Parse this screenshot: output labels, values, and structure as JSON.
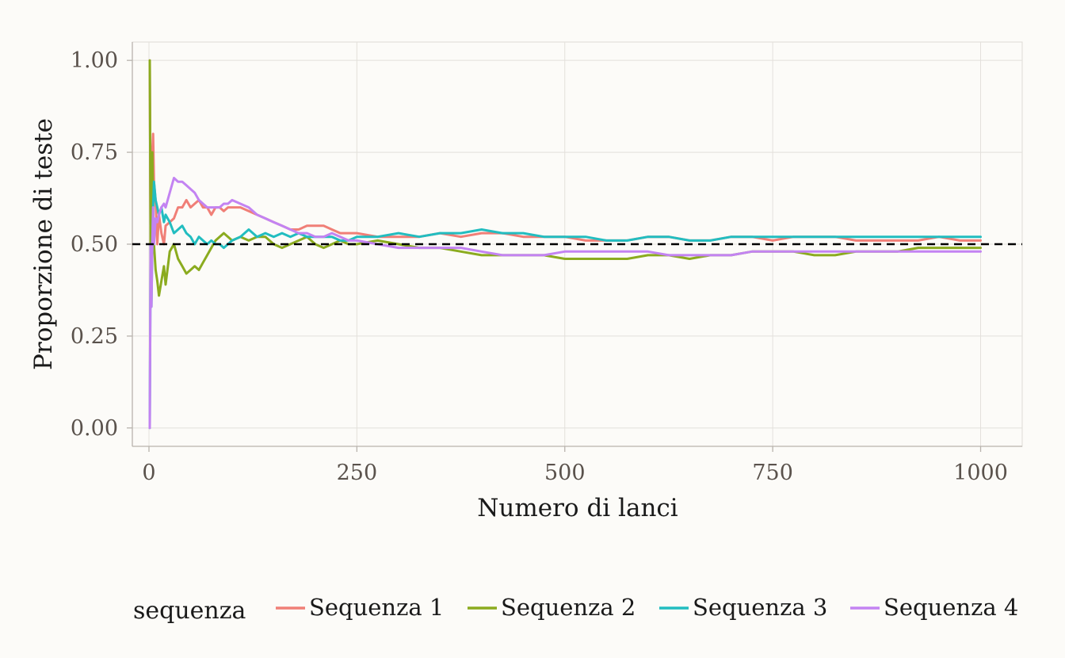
{
  "chart_data": {
    "type": "line",
    "xlabel": "Numero di lanci",
    "ylabel": "Proporzione di teste",
    "xlim": [
      -20,
      1050
    ],
    "ylim": [
      -0.05,
      1.05
    ],
    "x_ticks": [
      0,
      250,
      500,
      750,
      1000
    ],
    "x_tick_labels": [
      "0",
      "250",
      "500",
      "750",
      "1000"
    ],
    "y_ticks": [
      0,
      0.25,
      0.5,
      0.75,
      1.0
    ],
    "y_tick_labels": [
      "0.00",
      "0.25",
      "0.50",
      "0.75",
      "1.00"
    ],
    "grid": true,
    "reference_line": {
      "y": 0.5,
      "style": "dashed",
      "color": "#000000"
    },
    "legend": {
      "title": "sequenza",
      "placement": "bottom"
    },
    "series": [
      {
        "name": "Sequenza 1",
        "color": "#f07f77",
        "x": [
          1,
          2,
          3,
          4,
          5,
          6,
          8,
          10,
          12,
          15,
          18,
          20,
          25,
          30,
          35,
          40,
          45,
          50,
          55,
          60,
          65,
          70,
          75,
          80,
          85,
          90,
          95,
          100,
          110,
          120,
          130,
          140,
          150,
          160,
          170,
          180,
          190,
          200,
          210,
          220,
          230,
          240,
          250,
          275,
          300,
          325,
          350,
          375,
          400,
          425,
          450,
          475,
          500,
          525,
          550,
          575,
          600,
          625,
          650,
          675,
          700,
          725,
          750,
          775,
          800,
          825,
          850,
          875,
          900,
          925,
          950,
          975,
          1000
        ],
        "y": [
          1.0,
          0.5,
          0.67,
          0.75,
          0.8,
          0.67,
          0.62,
          0.5,
          0.58,
          0.53,
          0.5,
          0.55,
          0.56,
          0.57,
          0.6,
          0.6,
          0.62,
          0.6,
          0.61,
          0.62,
          0.6,
          0.6,
          0.58,
          0.6,
          0.6,
          0.59,
          0.6,
          0.6,
          0.6,
          0.59,
          0.58,
          0.57,
          0.56,
          0.55,
          0.54,
          0.54,
          0.55,
          0.55,
          0.55,
          0.54,
          0.53,
          0.53,
          0.53,
          0.52,
          0.52,
          0.52,
          0.53,
          0.52,
          0.53,
          0.53,
          0.52,
          0.52,
          0.52,
          0.51,
          0.51,
          0.51,
          0.52,
          0.52,
          0.51,
          0.51,
          0.52,
          0.52,
          0.51,
          0.52,
          0.52,
          0.52,
          0.51,
          0.51,
          0.51,
          0.51,
          0.52,
          0.51,
          0.51
        ]
      },
      {
        "name": "Sequenza 2",
        "color": "#8bab1f",
        "x": [
          1,
          2,
          3,
          4,
          5,
          6,
          8,
          10,
          12,
          15,
          18,
          20,
          25,
          30,
          35,
          40,
          45,
          50,
          55,
          60,
          65,
          70,
          75,
          80,
          85,
          90,
          95,
          100,
          110,
          120,
          130,
          140,
          150,
          160,
          170,
          180,
          190,
          200,
          210,
          220,
          230,
          240,
          250,
          275,
          300,
          325,
          350,
          375,
          400,
          425,
          450,
          475,
          500,
          525,
          550,
          575,
          600,
          625,
          650,
          675,
          700,
          725,
          750,
          775,
          800,
          825,
          850,
          875,
          900,
          925,
          950,
          975,
          1000
        ],
        "y": [
          1.0,
          0.5,
          0.67,
          0.75,
          0.6,
          0.5,
          0.43,
          0.4,
          0.36,
          0.4,
          0.44,
          0.39,
          0.48,
          0.5,
          0.46,
          0.44,
          0.42,
          0.43,
          0.44,
          0.43,
          0.45,
          0.47,
          0.49,
          0.51,
          0.52,
          0.53,
          0.52,
          0.51,
          0.52,
          0.51,
          0.52,
          0.52,
          0.5,
          0.49,
          0.5,
          0.51,
          0.52,
          0.5,
          0.49,
          0.5,
          0.51,
          0.5,
          0.5,
          0.51,
          0.5,
          0.49,
          0.49,
          0.48,
          0.47,
          0.47,
          0.47,
          0.47,
          0.46,
          0.46,
          0.46,
          0.46,
          0.47,
          0.47,
          0.46,
          0.47,
          0.47,
          0.48,
          0.48,
          0.48,
          0.47,
          0.47,
          0.48,
          0.48,
          0.48,
          0.49,
          0.49,
          0.49,
          0.49
        ]
      },
      {
        "name": "Sequenza 3",
        "color": "#22bdc0",
        "x": [
          1,
          2,
          3,
          4,
          5,
          6,
          8,
          10,
          12,
          15,
          18,
          20,
          25,
          30,
          35,
          40,
          45,
          50,
          55,
          60,
          65,
          70,
          75,
          80,
          85,
          90,
          95,
          100,
          110,
          120,
          130,
          140,
          150,
          160,
          170,
          180,
          190,
          200,
          210,
          220,
          230,
          240,
          250,
          275,
          300,
          325,
          350,
          375,
          400,
          425,
          450,
          475,
          500,
          525,
          550,
          575,
          600,
          625,
          650,
          675,
          700,
          725,
          750,
          775,
          800,
          825,
          850,
          875,
          900,
          925,
          950,
          975,
          1000
        ],
        "y": [
          0.0,
          0.5,
          0.33,
          0.5,
          0.6,
          0.67,
          0.62,
          0.6,
          0.58,
          0.6,
          0.56,
          0.58,
          0.56,
          0.53,
          0.54,
          0.55,
          0.53,
          0.52,
          0.5,
          0.52,
          0.51,
          0.5,
          0.51,
          0.5,
          0.5,
          0.49,
          0.5,
          0.51,
          0.52,
          0.54,
          0.52,
          0.53,
          0.52,
          0.53,
          0.52,
          0.53,
          0.52,
          0.52,
          0.52,
          0.52,
          0.51,
          0.51,
          0.52,
          0.52,
          0.53,
          0.52,
          0.53,
          0.53,
          0.54,
          0.53,
          0.53,
          0.52,
          0.52,
          0.52,
          0.51,
          0.51,
          0.52,
          0.52,
          0.51,
          0.51,
          0.52,
          0.52,
          0.52,
          0.52,
          0.52,
          0.52,
          0.52,
          0.52,
          0.52,
          0.52,
          0.52,
          0.52,
          0.52
        ]
      },
      {
        "name": "Sequenza 4",
        "color": "#c383f2",
        "x": [
          1,
          2,
          3,
          4,
          5,
          6,
          8,
          10,
          12,
          15,
          18,
          20,
          25,
          30,
          35,
          40,
          45,
          50,
          55,
          60,
          65,
          70,
          75,
          80,
          85,
          90,
          95,
          100,
          110,
          120,
          130,
          140,
          150,
          160,
          170,
          180,
          190,
          200,
          210,
          220,
          230,
          240,
          250,
          275,
          300,
          325,
          350,
          375,
          400,
          425,
          450,
          475,
          500,
          525,
          550,
          575,
          600,
          625,
          650,
          675,
          700,
          725,
          750,
          775,
          800,
          825,
          850,
          875,
          900,
          925,
          950,
          975,
          1000
        ],
        "y": [
          0.0,
          0.5,
          0.33,
          0.5,
          0.6,
          0.5,
          0.57,
          0.56,
          0.58,
          0.6,
          0.61,
          0.6,
          0.64,
          0.68,
          0.67,
          0.67,
          0.66,
          0.65,
          0.64,
          0.62,
          0.61,
          0.6,
          0.6,
          0.6,
          0.6,
          0.61,
          0.61,
          0.62,
          0.61,
          0.6,
          0.58,
          0.57,
          0.56,
          0.55,
          0.54,
          0.53,
          0.53,
          0.52,
          0.52,
          0.53,
          0.52,
          0.51,
          0.51,
          0.5,
          0.49,
          0.49,
          0.49,
          0.49,
          0.48,
          0.47,
          0.47,
          0.47,
          0.48,
          0.48,
          0.48,
          0.48,
          0.48,
          0.47,
          0.47,
          0.47,
          0.47,
          0.48,
          0.48,
          0.48,
          0.48,
          0.48,
          0.48,
          0.48,
          0.48,
          0.48,
          0.48,
          0.48,
          0.48
        ]
      }
    ]
  }
}
